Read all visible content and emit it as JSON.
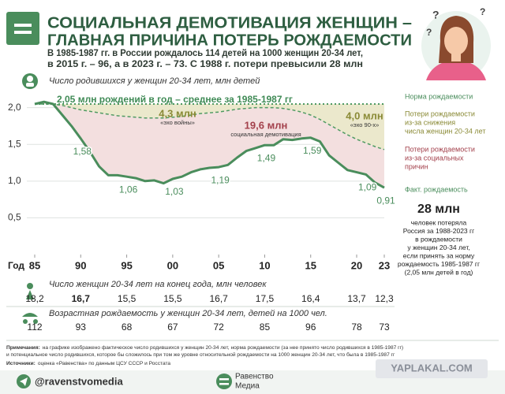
{
  "header": {
    "title_lines": [
      "СОЦИАЛЬНАЯ ДЕМОТИВАЦИЯ ЖЕНЩИН –",
      "ГЛАВНАЯ ПРИЧИНА ПОТЕРЬ РОЖДАЕМОСТИ"
    ],
    "subtitle_lines": [
      "В 1985-1987 гг. в России рождалось 114 детей на 1000 женщин 20-34 лет,",
      "в 2015 г. – 96, а в 2023 г. – 73. С 1988 г. потери превысили 28 млн"
    ]
  },
  "chart_data": {
    "type": "line",
    "y_label": "Число родившихся у женщин 20-34 лет, млн детей",
    "x_label": "Год",
    "x": [
      1985,
      1986,
      1987,
      1988,
      1989,
      1990,
      1991,
      1992,
      1993,
      1994,
      1995,
      1996,
      1997,
      1998,
      1999,
      2000,
      2001,
      2002,
      2003,
      2004,
      2005,
      2006,
      2007,
      2008,
      2009,
      2010,
      2011,
      2012,
      2013,
      2014,
      2015,
      2016,
      2017,
      2018,
      2019,
      2020,
      2021,
      2022,
      2023
    ],
    "xlim": [
      1985,
      2023
    ],
    "xticks": [
      {
        "value": 1985,
        "label": "85"
      },
      {
        "value": 1990,
        "label": "90"
      },
      {
        "value": 1995,
        "label": "95"
      },
      {
        "value": 2000,
        "label": "00"
      },
      {
        "value": 2005,
        "label": "05"
      },
      {
        "value": 2010,
        "label": "10"
      },
      {
        "value": 2015,
        "label": "15"
      },
      {
        "value": 2020,
        "label": "20"
      },
      {
        "value": 2023,
        "label": "23"
      }
    ],
    "ylim": [
      0,
      2.2
    ],
    "yticks": [
      {
        "value": 0.5,
        "label": "0,5"
      },
      {
        "value": 1.0,
        "label": "1,0"
      },
      {
        "value": 1.5,
        "label": "1,5"
      },
      {
        "value": 2.0,
        "label": "2,0"
      }
    ],
    "grid": true,
    "norm": 2.05,
    "norm_color": "#4f9a62",
    "norm_label": "2,05 млн рождений в год – среднее за 1985-1987 гг",
    "potential": {
      "color": "#4f9a62",
      "values": [
        2.05,
        2.05,
        2.05,
        2.03,
        2.0,
        1.97,
        1.95,
        1.93,
        1.91,
        1.89,
        1.88,
        1.87,
        1.86,
        1.86,
        1.86,
        1.87,
        1.88,
        1.9,
        1.92,
        1.93,
        1.94,
        1.96,
        1.98,
        1.99,
        2.0,
        2.0,
        2.0,
        1.99,
        1.97,
        1.94,
        1.9,
        1.84,
        1.77,
        1.7,
        1.63,
        1.57,
        1.52,
        1.47,
        1.43
      ]
    },
    "series": [
      {
        "name": "Факт. рождаемость",
        "color": "#4a8d5c",
        "values": [
          2.05,
          2.08,
          2.05,
          1.9,
          1.75,
          1.58,
          1.4,
          1.2,
          1.08,
          1.08,
          1.06,
          1.04,
          1.0,
          1.01,
          0.97,
          1.03,
          1.06,
          1.12,
          1.16,
          1.18,
          1.19,
          1.22,
          1.32,
          1.41,
          1.45,
          1.49,
          1.49,
          1.57,
          1.56,
          1.58,
          1.59,
          1.54,
          1.35,
          1.25,
          1.15,
          1.12,
          1.09,
          0.98,
          0.91
        ],
        "value_labels": [
          null,
          null,
          null,
          null,
          null,
          "1,58",
          null,
          null,
          null,
          null,
          "1,06",
          null,
          null,
          null,
          null,
          "1,03",
          null,
          null,
          null,
          null,
          "1,19",
          null,
          null,
          null,
          null,
          "1,49",
          null,
          null,
          null,
          null,
          "1,59",
          null,
          null,
          null,
          null,
          null,
          "1,09",
          null,
          "0,91"
        ]
      }
    ],
    "fill_demography": "#ebe8cc",
    "fill_social": "#f3dfdf",
    "annotations": [
      {
        "text": "4,3 млн",
        "note": "«эхо войны»",
        "color": "#8a8a36"
      },
      {
        "text": "19,6 млн",
        "note": "социальная демотивация",
        "color": "#a3404b"
      },
      {
        "text": "4,0 млн",
        "note": "«эхо 90-х»",
        "color": "#8a8a36"
      }
    ],
    "legend": [
      {
        "lines": [
          "Норма рождаемости"
        ],
        "color": "#4a8d5c"
      },
      {
        "lines": [
          "Потери рождаемости",
          "из-за снижения",
          "числа женщин 20-34 лет"
        ],
        "color": "#8a8a36"
      },
      {
        "lines": [
          "Потери рождаемости",
          "из-за социальных",
          "причин"
        ],
        "color": "#a3404b"
      },
      {
        "lines": [
          "Факт. рождаемость"
        ],
        "color": "#4a8d5c"
      }
    ]
  },
  "summary": {
    "value": "28 млн",
    "lines": [
      "человек потеряла",
      "Россия за 1988-2023 гг",
      "в рождаемости",
      "у женщин 20-34 лет,",
      "если принять за норму",
      "рождаемость 1985-1987 гг",
      "(2,05 млн детей в год)"
    ]
  },
  "tables": [
    {
      "label": "Число женщин 20-34 лет на конец года, млн человек",
      "values": [
        "18,2",
        "16,7",
        "15,5",
        "15,5",
        "16,7",
        "17,5",
        "16,4",
        "13,7",
        "12,3"
      ]
    },
    {
      "label": "Возрастная рождаемость у женщин 20-34 лет, детей на 1000 чел.",
      "values": [
        "112",
        "93",
        "68",
        "67",
        "72",
        "85",
        "96",
        "78",
        "73"
      ]
    }
  ],
  "footer": {
    "notes_label": "Примечания:",
    "notes_lines": [
      "на графике изображено фактическое число родившихся у женщин 20-34 лет, норма рождаемости (за нее принято число родившихся в 1985-1987 гг)",
      "и потенциальное число родившихся, которое бы сложилось при том же уровне относительной рождаемости на 1000 женщин 20-34 лет, что была в 1985-1987 гг"
    ],
    "sources_label": "Источники:",
    "sources": "оценка «Равенства» по данным ЦСУ СССР и Росстата",
    "handle": "@ravenstvomedia",
    "brand_lines": [
      "Равенство",
      "Медиа"
    ],
    "watermark": "YAPLAKAL.COM"
  }
}
